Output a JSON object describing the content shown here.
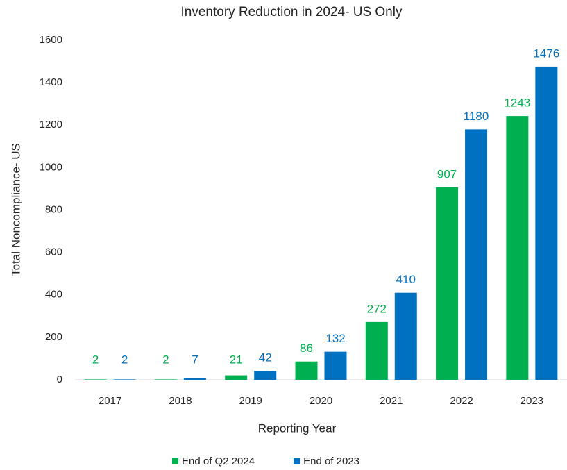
{
  "chart_data": {
    "type": "bar",
    "title": "Inventory Reduction in 2024- US Only",
    "x_label": "Reporting Year",
    "y_label": "Total Noncompliance- US",
    "categories": [
      "2017",
      "2018",
      "2019",
      "2020",
      "2021",
      "2022",
      "2023"
    ],
    "series": [
      {
        "name": "End of Q2 2024",
        "color": "#00b050",
        "values": [
          2,
          2,
          21,
          86,
          272,
          907,
          1243
        ]
      },
      {
        "name": "End of 2023",
        "color": "#0070c0",
        "values": [
          2,
          7,
          42,
          132,
          410,
          1180,
          1476
        ]
      }
    ],
    "ylim": [
      0,
      1600
    ],
    "yticks": [
      0,
      200,
      400,
      600,
      800,
      1000,
      1200,
      1400,
      1600
    ],
    "grid": false,
    "legend": "bottom"
  }
}
